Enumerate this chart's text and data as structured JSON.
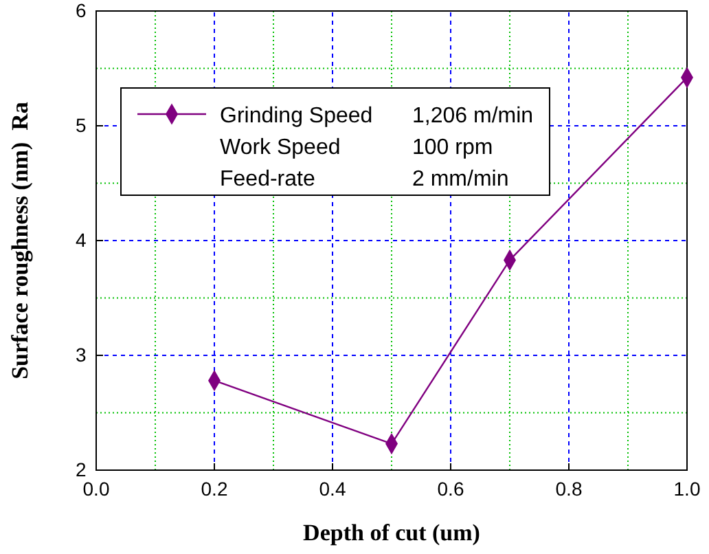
{
  "chart_data": {
    "type": "line",
    "xlabel": "Depth of cut (um)",
    "ylabel": "Surface roughness (nm)  Ra",
    "x": [
      0.2,
      0.5,
      0.7,
      1.0
    ],
    "series": [
      {
        "name": "Grinding Speed",
        "color": "#800080",
        "values": [
          2.78,
          2.23,
          3.83,
          5.42
        ]
      }
    ],
    "xlim": [
      0,
      1.0
    ],
    "xticks": [
      {
        "value": 0,
        "label": "0.0"
      },
      {
        "value": 0.1,
        "label": null
      },
      {
        "value": 0.2,
        "label": "0.2"
      },
      {
        "value": 0.3,
        "label": null
      },
      {
        "value": 0.4,
        "label": "0.4"
      },
      {
        "value": 0.5,
        "label": null
      },
      {
        "value": 0.6,
        "label": "0.6"
      },
      {
        "value": 0.7,
        "label": null
      },
      {
        "value": 0.8,
        "label": "0.8"
      },
      {
        "value": 0.9,
        "label": null
      },
      {
        "value": 1.0,
        "label": "1.0"
      }
    ],
    "ylim": [
      2,
      6
    ],
    "yticks": [
      2,
      {
        "value": 2.5,
        "label": null
      },
      3,
      {
        "value": 3.5,
        "label": null
      },
      4,
      {
        "value": 4.5,
        "label": null
      },
      5,
      {
        "value": 5.5,
        "label": null
      },
      6
    ],
    "grid": true,
    "legend": "top",
    "marker": "diamond",
    "line_style": "solid",
    "annotations": [
      "1,206 m/min",
      "Work Speed",
      "100 rpm",
      "Feed-rate",
      "2 mm/min"
    ]
  }
}
